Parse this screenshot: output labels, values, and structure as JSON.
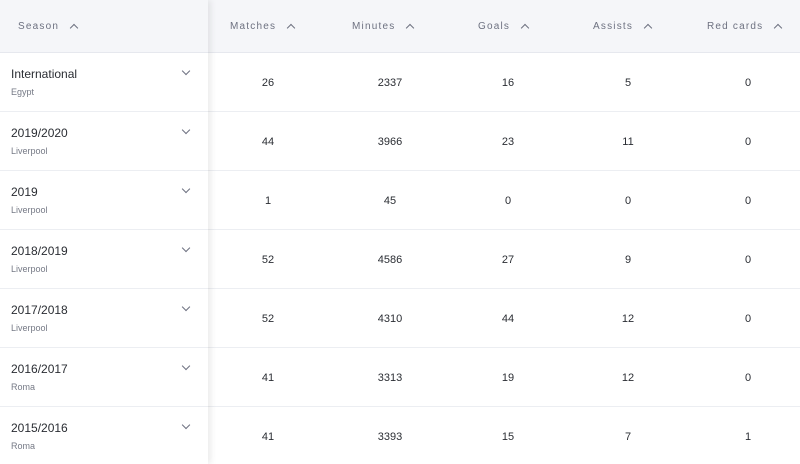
{
  "header": {
    "season": "Season",
    "matches": "Matches",
    "minutes": "Minutes",
    "goals": "Goals",
    "assists": "Assists",
    "red_cards": "Red cards"
  },
  "rows": [
    {
      "season": "International",
      "team": "Egypt",
      "matches": "26",
      "minutes": "2337",
      "goals": "16",
      "assists": "5",
      "red_cards": "0"
    },
    {
      "season": "2019/2020",
      "team": "Liverpool",
      "matches": "44",
      "minutes": "3966",
      "goals": "23",
      "assists": "11",
      "red_cards": "0"
    },
    {
      "season": "2019",
      "team": "Liverpool",
      "matches": "1",
      "minutes": "45",
      "goals": "0",
      "assists": "0",
      "red_cards": "0"
    },
    {
      "season": "2018/2019",
      "team": "Liverpool",
      "matches": "52",
      "minutes": "4586",
      "goals": "27",
      "assists": "9",
      "red_cards": "0"
    },
    {
      "season": "2017/2018",
      "team": "Liverpool",
      "matches": "52",
      "minutes": "4310",
      "goals": "44",
      "assists": "12",
      "red_cards": "0"
    },
    {
      "season": "2016/2017",
      "team": "Roma",
      "matches": "41",
      "minutes": "3313",
      "goals": "19",
      "assists": "12",
      "red_cards": "0"
    },
    {
      "season": "2015/2016",
      "team": "Roma",
      "matches": "41",
      "minutes": "3393",
      "goals": "15",
      "assists": "7",
      "red_cards": "1"
    }
  ]
}
